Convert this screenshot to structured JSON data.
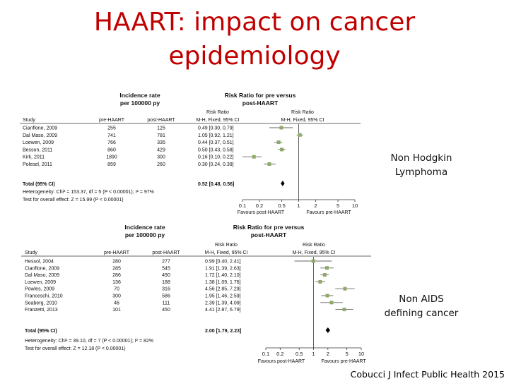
{
  "slide": {
    "title_line1": "HAART: impact on cancer",
    "title_line2": "epidemiology",
    "label1_line1": "Non Hodgkin",
    "label1_line2": "Lymphoma",
    "label2_line1": "Non AIDS",
    "label2_line2": "defining cancer",
    "citation": "Cobucci J Infect Public Health 2015"
  },
  "plot1": {
    "head_incidence1": "Incidence rate",
    "head_incidence2": "per 100000 py",
    "head_rr1": "Risk Ratio for pre versus",
    "head_rr2": "post-HAART",
    "col_study": "Study",
    "col_pre": "pre-HAART",
    "col_post": "post-HAART",
    "col_rr_a": "Risk Ratio",
    "col_rr_b": "M-H, Fixed, 95% CI",
    "col_rr_c": "Risk Ratio",
    "col_rr_d": "M-H, Fixed, 95% CI",
    "total_label": "Total (95% CI)",
    "total_rr": "0.52 [0.48, 0.56]",
    "heterogeneity": "Heterogeneity: Chi² = 153.37, df = 5 (P < 0.00001); I² = 97%",
    "overall": "Test for overall effect: Z = 15.99 (P < 0.00001)",
    "favours_left": "Favours post-HAART",
    "favours_right": "Favours pre-HAART",
    "rows": [
      {
        "study": "Cianflone, 2009",
        "pre": "255",
        "post": "125",
        "rr": "0.49 [0.30, 0.79]"
      },
      {
        "study": "Dal Maso, 2009",
        "pre": "741",
        "post": "781",
        "rr": "1.05 [0.92, 1.21]"
      },
      {
        "study": "Loewen, 2009",
        "pre": "766",
        "post": "335",
        "rr": "0.44 [0.37, 0.51]"
      },
      {
        "study": "Besson, 2011",
        "pre": "860",
        "post": "429",
        "rr": "0.50 [0.43, 0.58]"
      },
      {
        "study": "Kirk, 2011",
        "pre": "1890",
        "post": "300",
        "rr": "0.16 [0.10, 0.22]"
      },
      {
        "study": "Polesel, 2011",
        "pre": "859",
        "post": "260",
        "rr": "0.30 [0.24, 0.39]"
      }
    ],
    "ticks": [
      "0.1",
      "0.2",
      "0.5",
      "1",
      "2",
      "5",
      "10"
    ]
  },
  "plot2": {
    "head_incidence1": "Incidence rate",
    "head_incidence2": "per 100000 py",
    "head_rr1": "Risk Ratio for pre versus",
    "head_rr2": "post-HAART",
    "col_study": "Study",
    "col_pre": "pre-HAART",
    "col_post": "post-HAART",
    "col_rr_a": "Risk Ratio",
    "col_rr_b": "M-H, Fixed, 95% CI",
    "col_rr_c": "Risk Ratio",
    "col_rr_d": "M-H, Fixed, 95% CI",
    "total_label": "Total (95% CI)",
    "total_rr": "2.00 [1.79, 2.23]",
    "heterogeneity": "Heterogeneity: Chi² = 39.10, df = 7 (P < 0.00001); I² = 82%",
    "overall": "Test for overall effect: Z = 12.18 (P < 0.00001)",
    "favours_left": "Favours post-HAART",
    "favours_right": "Favours pre-HAART",
    "rows": [
      {
        "study": "Hessol, 2004",
        "pre": "280",
        "post": "277",
        "rr": "0.99 [0.40, 2.41]"
      },
      {
        "study": "Cianflone, 2009",
        "pre": "285",
        "post": "545",
        "rr": "1.91 [1.39, 2.63]"
      },
      {
        "study": "Dal Maso, 2009",
        "pre": "286",
        "post": "490",
        "rr": "1.72 [1.40, 2.10]"
      },
      {
        "study": "Loewen, 2009",
        "pre": "136",
        "post": "188",
        "rr": "1.38 [1.09, 1.76]"
      },
      {
        "study": "Powles, 2009",
        "pre": "70",
        "post": "316",
        "rr": "4.56 [2.85, 7.29]"
      },
      {
        "study": "Franceschi, 2010",
        "pre": "300",
        "post": "586",
        "rr": "1.95 [1.46, 2.59]"
      },
      {
        "study": "Seaberg, 2010",
        "pre": "46",
        "post": "111",
        "rr": "2.39 [1.39, 4.09]"
      },
      {
        "study": "Franzetti, 2013",
        "pre": "101",
        "post": "450",
        "rr": "4.41 [2.87, 6.79]"
      }
    ],
    "ticks": [
      "0.1",
      "0.2",
      "0.5",
      "1",
      "2",
      "5",
      "10"
    ]
  },
  "chart_data": [
    {
      "type": "forest",
      "xscale": "log",
      "xlim": [
        0.1,
        10
      ],
      "rr": [
        0.49,
        1.05,
        0.44,
        0.5,
        0.16,
        0.3
      ],
      "ci_low": [
        0.3,
        0.92,
        0.37,
        0.43,
        0.1,
        0.24
      ],
      "ci_high": [
        0.79,
        1.21,
        0.51,
        0.58,
        0.22,
        0.39
      ],
      "total": {
        "rr": 0.52,
        "ci_low": 0.48,
        "ci_high": 0.56
      },
      "marker_color": "#8fa86a"
    },
    {
      "type": "forest",
      "xscale": "log",
      "xlim": [
        0.1,
        10
      ],
      "rr": [
        0.99,
        1.91,
        1.72,
        1.38,
        4.56,
        1.95,
        2.39,
        4.41
      ],
      "ci_low": [
        0.4,
        1.39,
        1.4,
        1.09,
        2.85,
        1.46,
        1.39,
        2.87
      ],
      "ci_high": [
        2.41,
        2.63,
        2.1,
        1.76,
        7.29,
        2.59,
        4.09,
        6.79
      ],
      "total": {
        "rr": 2.0,
        "ci_low": 1.79,
        "ci_high": 2.23
      },
      "marker_color": "#8fa86a"
    }
  ]
}
